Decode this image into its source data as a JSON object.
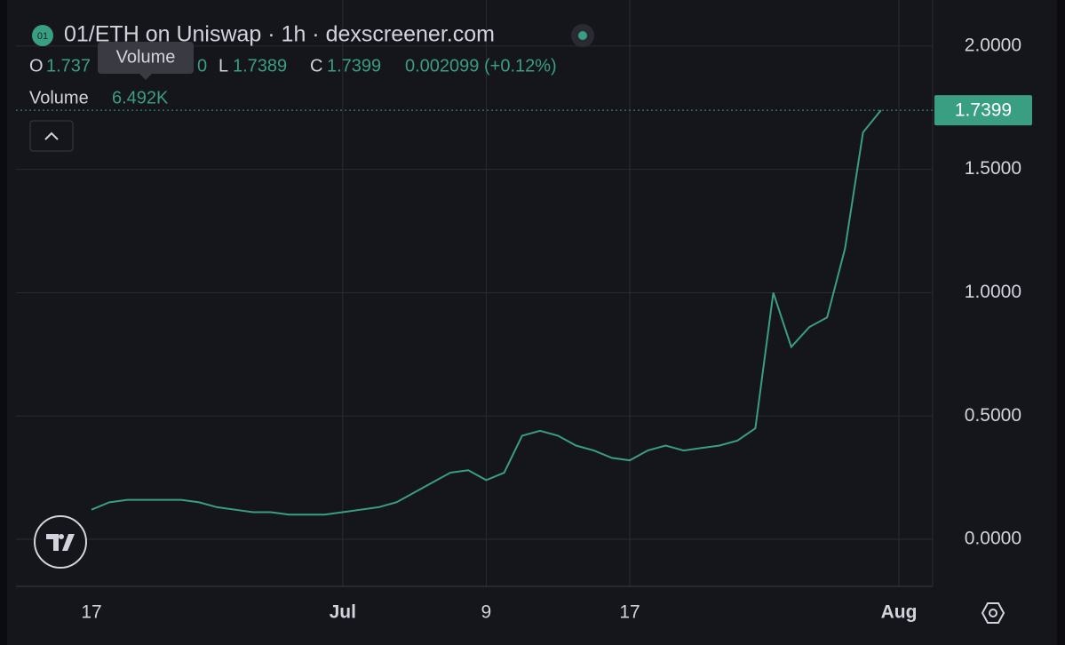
{
  "chart_data": {
    "type": "line",
    "title": "01/ETH on Uniswap · 1h · dexscreener.com",
    "badge": "01",
    "ohlc": [
      "O",
      "1.737",
      "0",
      "L",
      "1.7389",
      "C",
      "1.7399",
      "0.002099 (+0.12%)"
    ],
    "tooltip": "Volume",
    "volume_label": "Volume",
    "volume_value": "6.492K",
    "categories": [
      "17",
      null,
      null,
      null,
      null,
      null,
      null,
      null,
      null,
      null,
      null,
      null,
      null,
      null,
      "Jul",
      null,
      null,
      null,
      null,
      null,
      null,
      null,
      "9",
      null,
      null,
      null,
      null,
      null,
      null,
      null,
      "17",
      null,
      null,
      null,
      null,
      null,
      null,
      null,
      null,
      null,
      null,
      null,
      null,
      null,
      null,
      "Aug"
    ],
    "series": [
      {
        "name": "01/ETH",
        "color": "#3a9e83",
        "values": [
          0.12,
          0.15,
          0.16,
          0.16,
          0.16,
          0.16,
          0.15,
          0.13,
          0.12,
          0.11,
          0.11,
          0.1,
          0.1,
          0.1,
          0.11,
          0.12,
          0.13,
          0.15,
          0.19,
          0.23,
          0.27,
          0.28,
          0.24,
          0.27,
          0.42,
          0.44,
          0.42,
          0.38,
          0.36,
          0.33,
          0.32,
          0.36,
          0.38,
          0.36,
          0.37,
          0.38,
          0.4,
          0.45,
          1.0,
          0.78,
          0.86,
          0.9,
          1.18,
          1.65,
          1.74,
          null
        ]
      }
    ],
    "last_price": 1.7399,
    "ylim": [
      -0.191,
      2.187
    ],
    "yticks": [
      {
        "value": 0,
        "label": "0.0000"
      },
      {
        "value": 0.5,
        "label": "0.5000"
      },
      {
        "value": 1,
        "label": "1.0000"
      },
      {
        "value": 1.5,
        "label": "1.5000"
      },
      {
        "value": 2,
        "label": "2.0000"
      }
    ],
    "grid": true
  }
}
